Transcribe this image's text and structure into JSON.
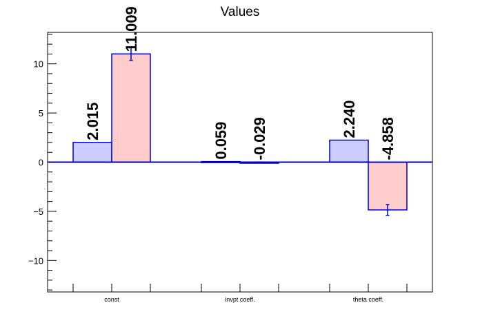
{
  "chart_data": {
    "type": "bar",
    "title": "Values",
    "xlabel": "",
    "ylabel": "",
    "categories": [
      "const",
      "invpt coeff.",
      "theta coeff."
    ],
    "ylim": [
      -13.2,
      13.2
    ],
    "yticks": [
      -10,
      -5,
      0,
      5,
      10
    ],
    "ytick_labels": [
      "−10",
      "−5",
      "0",
      "5",
      "10"
    ],
    "grid": false,
    "legend": "none",
    "series": [
      {
        "values": [
          2.015,
          0.059,
          2.24
        ],
        "labels": [
          "2.015",
          "0.059",
          "2.240"
        ],
        "errors": [
          0,
          0,
          0
        ],
        "fill": "#ccccff",
        "stroke": "#0000cc"
      },
      {
        "values": [
          11.009,
          -0.029,
          -4.858
        ],
        "labels": [
          "11.009",
          "-0.029",
          "-4.858"
        ],
        "errors": [
          0.65,
          0.05,
          0.55
        ],
        "fill": "#ffcccc",
        "stroke": "#0000cc"
      }
    ],
    "zero_line_color": "#0000cc"
  }
}
